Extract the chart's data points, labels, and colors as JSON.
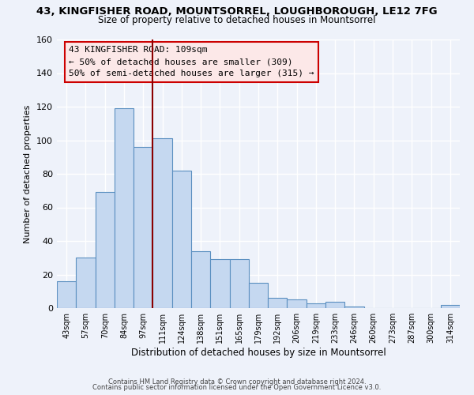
{
  "title": "43, KINGFISHER ROAD, MOUNTSORREL, LOUGHBOROUGH, LE12 7FG",
  "subtitle": "Size of property relative to detached houses in Mountsorrel",
  "xlabel": "Distribution of detached houses by size in Mountsorrel",
  "ylabel": "Number of detached properties",
  "bar_color": "#c5d8f0",
  "bar_edge_color": "#5a8fc0",
  "bins": [
    "43sqm",
    "57sqm",
    "70sqm",
    "84sqm",
    "97sqm",
    "111sqm",
    "124sqm",
    "138sqm",
    "151sqm",
    "165sqm",
    "179sqm",
    "192sqm",
    "206sqm",
    "219sqm",
    "233sqm",
    "246sqm",
    "260sqm",
    "273sqm",
    "287sqm",
    "300sqm",
    "314sqm"
  ],
  "values": [
    16,
    30,
    69,
    119,
    96,
    101,
    82,
    34,
    29,
    29,
    15,
    6,
    5,
    3,
    4,
    1,
    0,
    0,
    0,
    0,
    2
  ],
  "vline_x_idx": 4.5,
  "vline_color": "#8b0000",
  "annotation_line1": "43 KINGFISHER ROAD: 109sqm",
  "annotation_line2": "← 50% of detached houses are smaller (309)",
  "annotation_line3": "50% of semi-detached houses are larger (315) →",
  "annotation_box_facecolor": "#fce8e8",
  "annotation_box_edgecolor": "#cc0000",
  "ylim": [
    0,
    160
  ],
  "yticks": [
    0,
    20,
    40,
    60,
    80,
    100,
    120,
    140,
    160
  ],
  "footer_line1": "Contains HM Land Registry data © Crown copyright and database right 2024.",
  "footer_line2": "Contains public sector information licensed under the Open Government Licence v3.0.",
  "background_color": "#eef2fa",
  "grid_color": "#ffffff"
}
